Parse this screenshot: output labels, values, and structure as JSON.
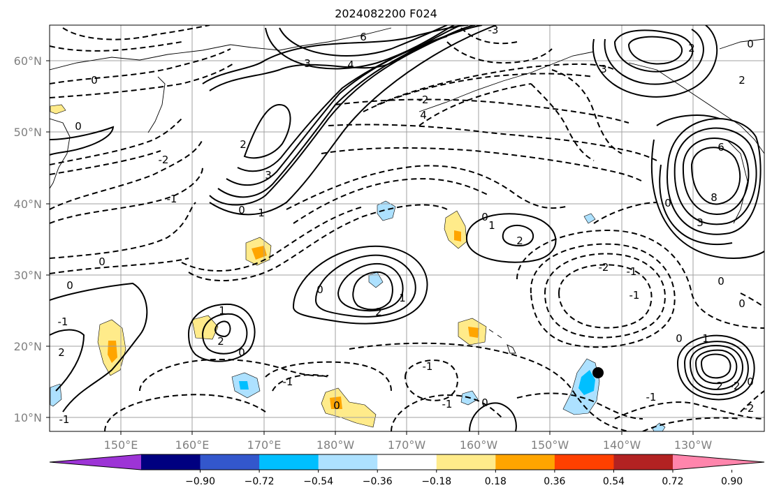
{
  "title": "2024082200 F024",
  "lat_labels": [
    "60°N",
    "50°N",
    "40°N",
    "30°N",
    "20°N",
    "10°N"
  ],
  "lon_labels": [
    "150°E",
    "160°E",
    "170°E",
    "180°W",
    "170°W",
    "160°W",
    "150°W",
    "140°W",
    "130°W"
  ],
  "contour_labels": [
    "6",
    "4",
    "3",
    "3",
    "-3",
    "-2",
    "0",
    "-1",
    "2",
    "0",
    "-2",
    "2",
    "4",
    "3",
    "8",
    "6",
    "3",
    "2",
    "1",
    "0",
    "0",
    "1",
    "2",
    "0",
    "-1",
    "2",
    "-1",
    "0",
    "0",
    "1",
    "2",
    "-2",
    "-1",
    "0",
    "0",
    "-1",
    "2",
    "0",
    "1",
    "2",
    "-2",
    "0",
    "1",
    "-1",
    "0",
    "-1",
    "-2",
    "-1",
    "0",
    "-1",
    "0",
    "0",
    "0"
  ],
  "colorbar": {
    "ticks": [
      "−0.90",
      "−0.72",
      "−0.54",
      "−0.36",
      "−0.18",
      "0.18",
      "0.36",
      "0.54",
      "0.72",
      "0.90"
    ],
    "colors": [
      "#9d34d6",
      "#000080",
      "#3357cc",
      "#00bfff",
      "#ade1ff",
      "#ffffff",
      "#ffeb8a",
      "#ffa500",
      "#ff4000",
      "#b22222",
      "#ff85ac"
    ]
  },
  "marker": {
    "name": "black-dot",
    "color": "#000000"
  }
}
